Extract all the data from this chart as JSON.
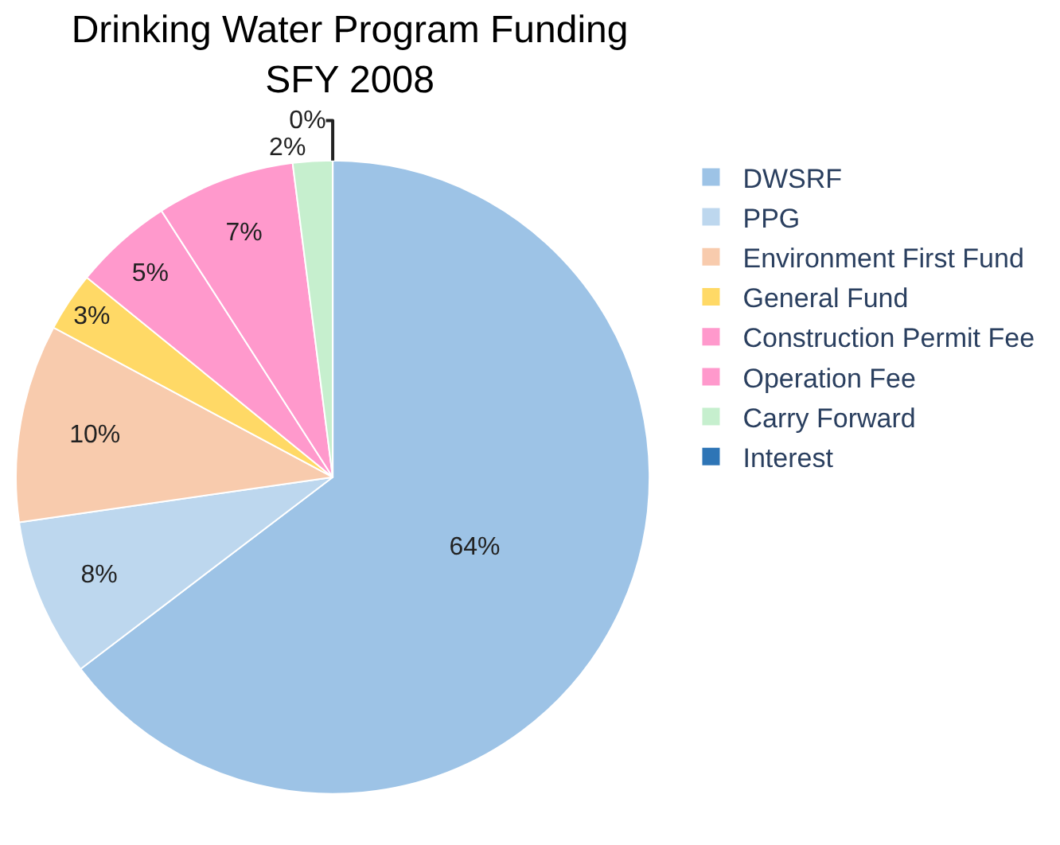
{
  "chart_data": {
    "type": "pie",
    "title": "Drinking Water Program Funding\nSFY 2008",
    "categories": [
      "DWSRF",
      "PPG",
      "Environment First Fund",
      "General Fund",
      "Construction Permit Fee",
      "Operation Fee",
      "Carry Forward",
      "Interest"
    ],
    "values": [
      64,
      8,
      10,
      3,
      5,
      7,
      2,
      0
    ],
    "value_labels": [
      "64%",
      "8%",
      "10%",
      "3%",
      "5%",
      "7%",
      "2%",
      "0%"
    ],
    "colors": [
      "#9dc3e6",
      "#bdd7ee",
      "#f8cbad",
      "#ffd966",
      "#ff99cc",
      "#ff99cc",
      "#c6efce",
      "#2e75b6"
    ],
    "legend": "right"
  }
}
